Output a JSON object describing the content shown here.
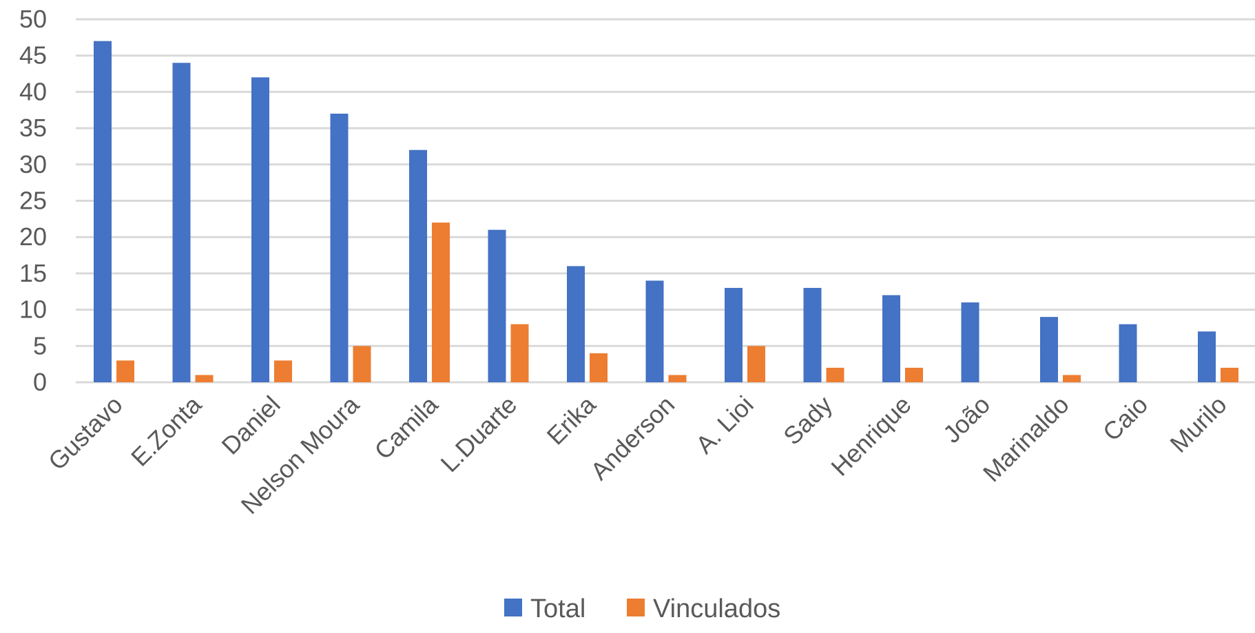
{
  "chart_data": {
    "type": "bar",
    "title": "",
    "xlabel": "",
    "ylabel": "",
    "categories": [
      "Gustavo",
      "E.Zonta",
      "Daniel",
      "Nelson Moura",
      "Camila",
      "L.Duarte",
      "Erika",
      "Anderson",
      "A. Lioi",
      "Sady",
      "Henrique",
      "João",
      "Marinaldo",
      "Caio",
      "Murilo"
    ],
    "series": [
      {
        "name": "Total",
        "color": "#4472c4",
        "values": [
          47,
          44,
          42,
          37,
          32,
          21,
          16,
          14,
          13,
          13,
          12,
          11,
          9,
          8,
          7
        ]
      },
      {
        "name": "Vinculados",
        "color": "#ed7d31",
        "values": [
          3,
          1,
          3,
          5,
          22,
          8,
          4,
          1,
          5,
          2,
          2,
          0,
          1,
          0,
          2
        ]
      }
    ],
    "ylim": [
      0,
      50
    ],
    "yticks": [
      0,
      5,
      10,
      15,
      20,
      25,
      30,
      35,
      40,
      45,
      50
    ],
    "grid": true,
    "legend": "bottom"
  }
}
